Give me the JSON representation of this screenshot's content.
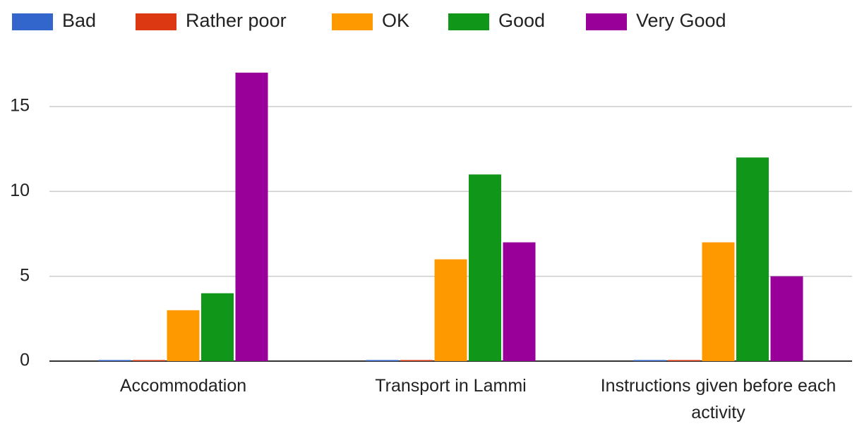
{
  "chart_data": {
    "type": "bar",
    "categories": [
      "Accommodation",
      "Transport in Lammi",
      "Instructions given before each activity"
    ],
    "series": [
      {
        "name": "Bad",
        "color": "#3366cc",
        "values": [
          0,
          0,
          0
        ]
      },
      {
        "name": "Rather poor",
        "color": "#dc3912",
        "values": [
          0,
          0,
          0
        ]
      },
      {
        "name": "OK",
        "color": "#ff9900",
        "values": [
          3,
          6,
          7
        ]
      },
      {
        "name": "Good",
        "color": "#109618",
        "values": [
          4,
          11,
          12
        ]
      },
      {
        "name": "Very Good",
        "color": "#990099",
        "values": [
          17,
          7,
          5
        ]
      }
    ],
    "ylim": [
      0,
      17
    ],
    "yticks": [
      0,
      5,
      10,
      15
    ],
    "grid": true,
    "legend": "top"
  }
}
